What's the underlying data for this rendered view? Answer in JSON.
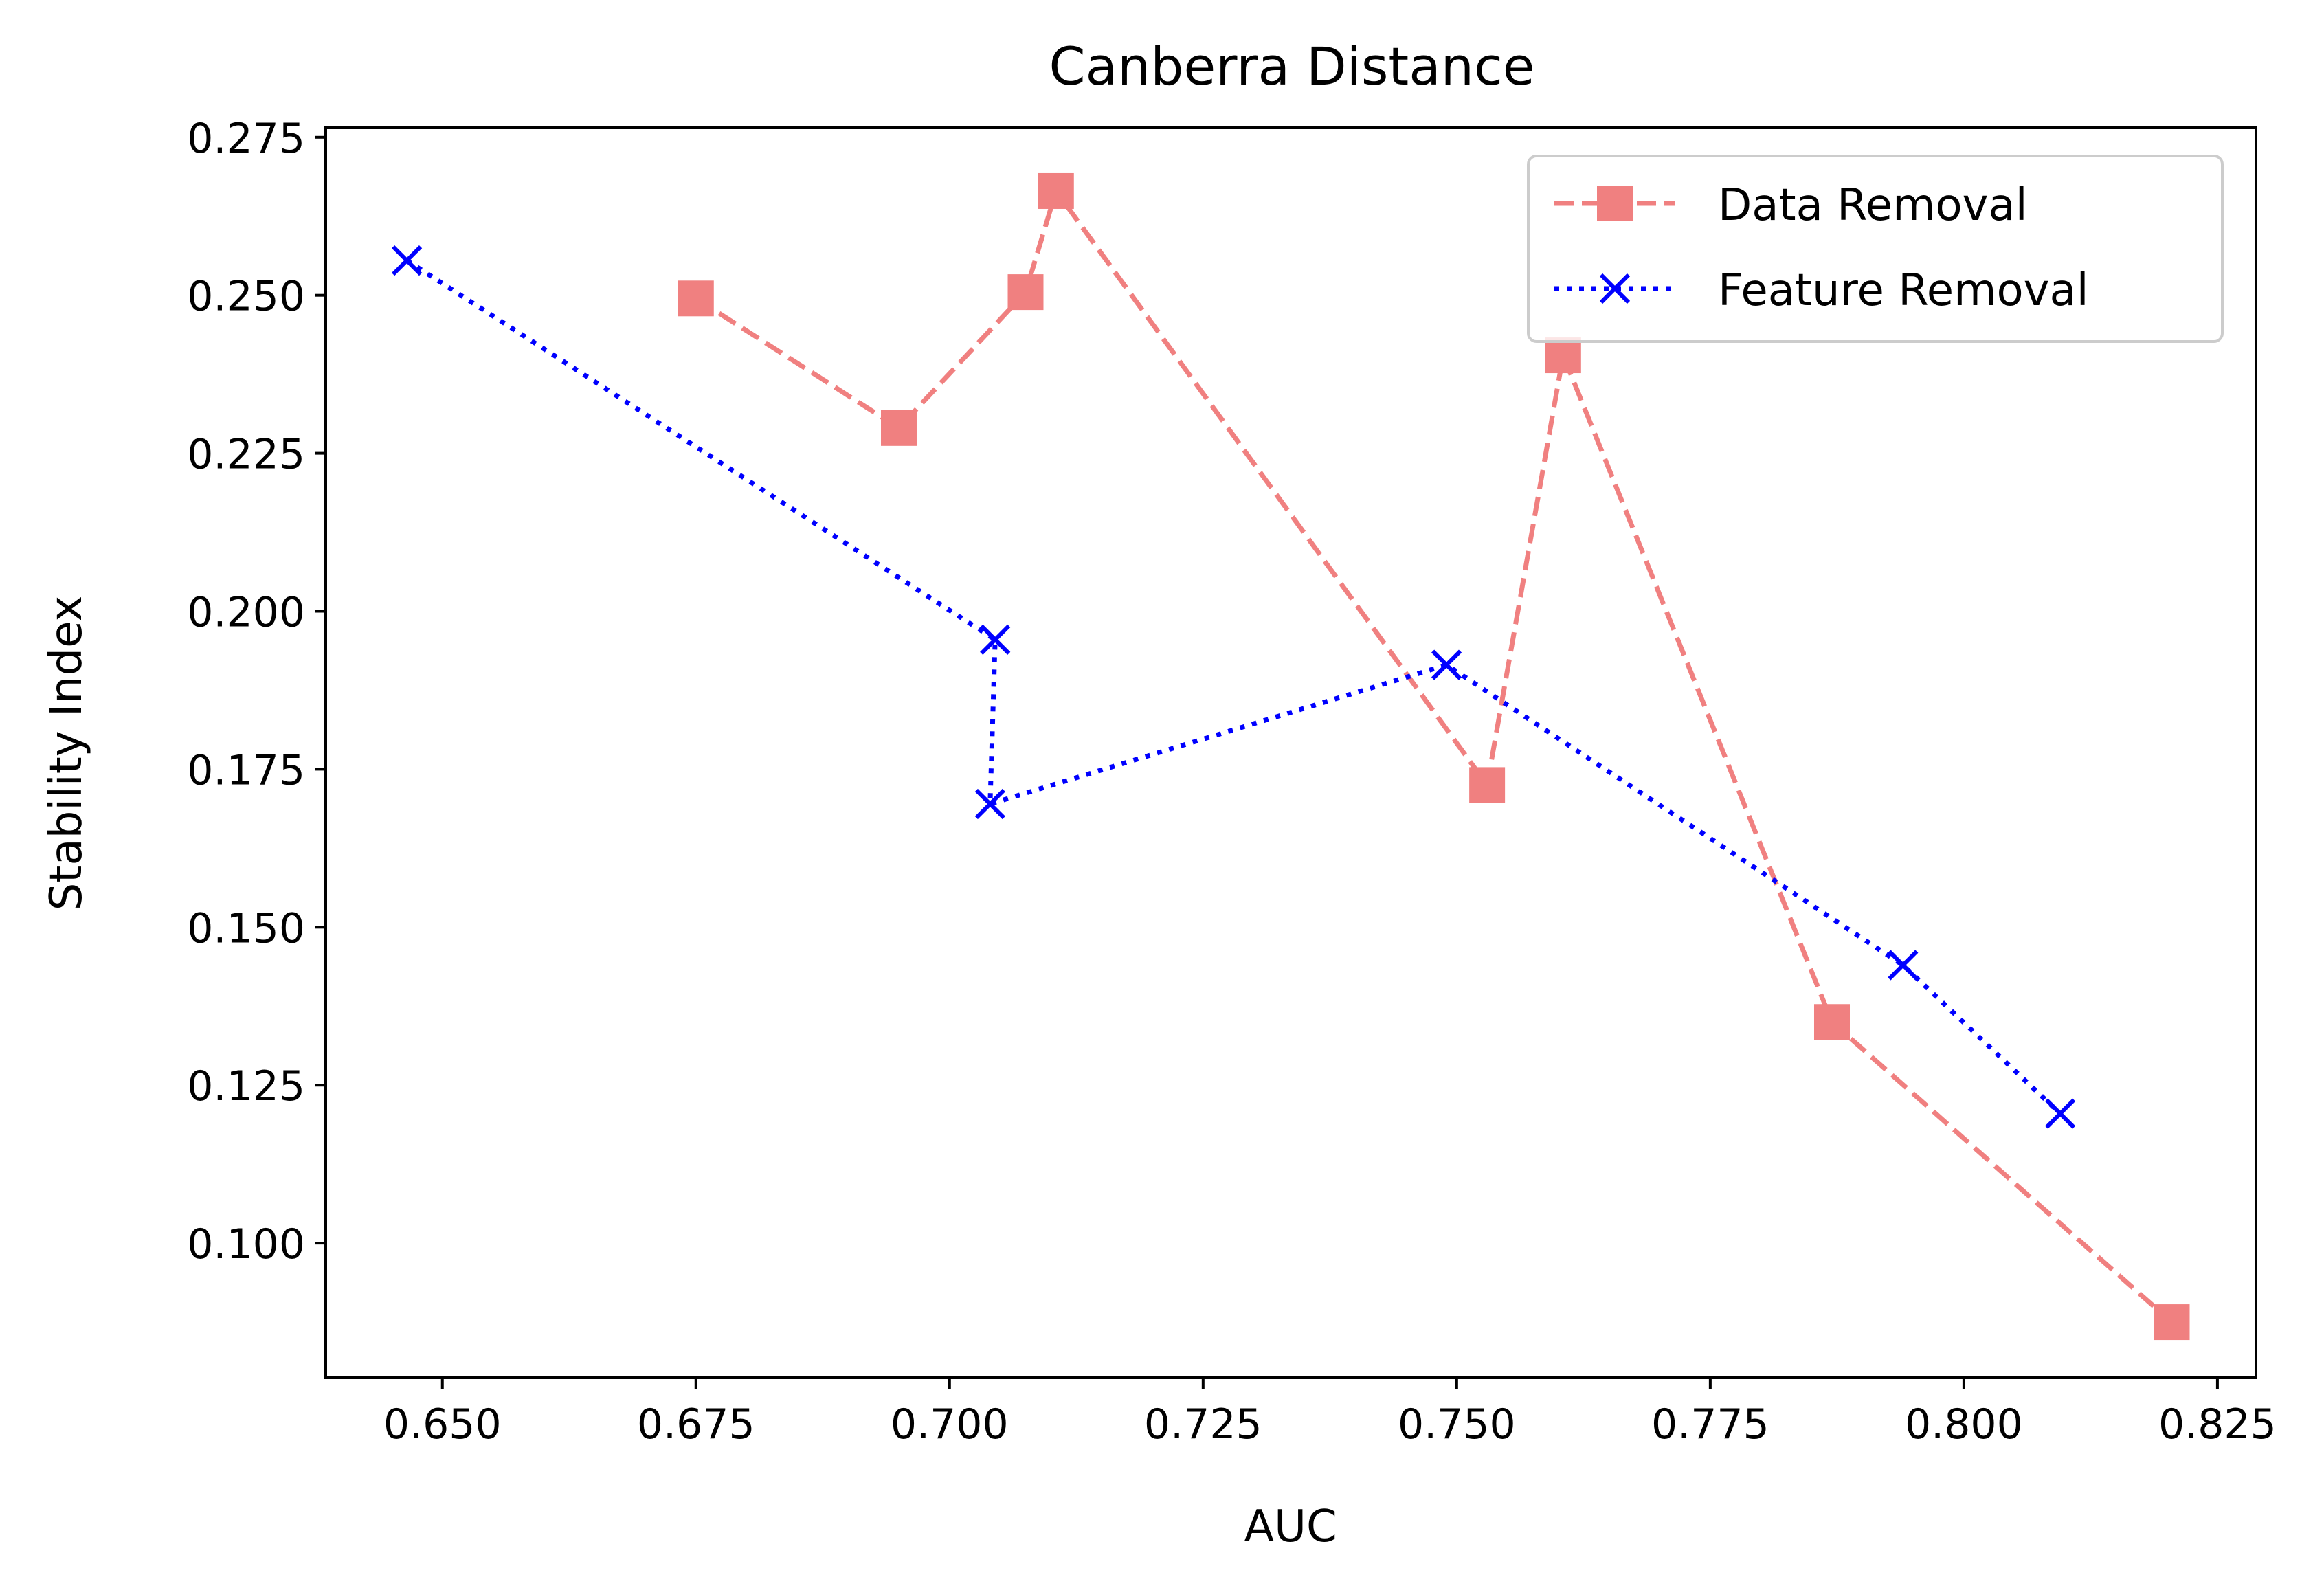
{
  "chart_data": {
    "type": "line",
    "title": "Canberra Distance",
    "xlabel": "AUC",
    "ylabel": "Stability Index",
    "xlim": [
      0.6385,
      0.8288
    ],
    "ylim": [
      0.0787,
      0.2765
    ],
    "x_ticks": [
      0.65,
      0.675,
      0.7,
      0.725,
      0.75,
      0.775,
      0.8,
      0.825
    ],
    "x_tick_labels": [
      "0.650",
      "0.675",
      "0.700",
      "0.725",
      "0.750",
      "0.775",
      "0.800",
      "0.825"
    ],
    "y_ticks": [
      0.1,
      0.125,
      0.15,
      0.175,
      0.2,
      0.225,
      0.25,
      0.275
    ],
    "y_tick_labels": [
      "0.100",
      "0.125",
      "0.150",
      "0.175",
      "0.200",
      "0.225",
      "0.250",
      "0.275"
    ],
    "grid": false,
    "legend_position": "top-right",
    "series": [
      {
        "name": "Data Removal",
        "color": "#f08080",
        "line_style": "dashed",
        "marker": "square",
        "x": [
          0.675,
          0.695,
          0.7075,
          0.7105,
          0.753,
          0.7605,
          0.787,
          0.8205
        ],
        "y": [
          0.2495,
          0.229,
          0.2505,
          0.2665,
          0.1725,
          0.2405,
          0.135,
          0.0875
        ]
      },
      {
        "name": "Feature Removal",
        "color": "#0000ff",
        "line_style": "dotted",
        "marker": "x",
        "x": [
          0.6465,
          0.7045,
          0.704,
          0.749,
          0.794,
          0.8095
        ],
        "y": [
          0.2555,
          0.1955,
          0.1695,
          0.1915,
          0.144,
          0.1205
        ]
      }
    ]
  }
}
